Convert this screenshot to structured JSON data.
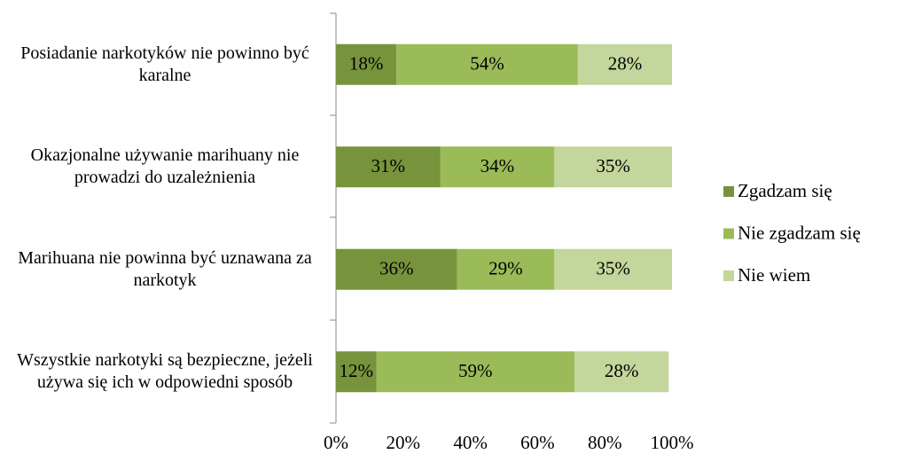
{
  "chart_data": {
    "type": "stacked_barh",
    "categories": [
      "Posiadanie narkotyków nie powinno być karalne",
      "Okazjonalne używanie marihuany nie prowadzi do uzależnienia",
      "Marihuana nie powinna być uznawana za narkotyk",
      "Wszystkie narkotyki są bezpieczne, jeżeli używa się ich w odpowiedni sposób"
    ],
    "series": [
      {
        "name": "Zgadzam się",
        "color": "#77933c",
        "values": [
          18,
          31,
          36,
          12
        ],
        "value_labels": [
          "18%",
          "31%",
          "36%",
          "12%"
        ]
      },
      {
        "name": "Nie zgadzam się",
        "color": "#9bbb59",
        "values": [
          54,
          34,
          29,
          59
        ],
        "value_labels": [
          "54%",
          "34%",
          "29%",
          "59%"
        ]
      },
      {
        "name": "Nie wiem",
        "color": "#c3d69b",
        "values": [
          28,
          35,
          35,
          28
        ],
        "value_labels": [
          "28%",
          "35%",
          "35%",
          "28%"
        ]
      }
    ],
    "xlim": [
      0,
      100
    ],
    "xticks": [
      {
        "value": 0,
        "label": "0%"
      },
      {
        "value": 20,
        "label": "20%"
      },
      {
        "value": 40,
        "label": "40%"
      },
      {
        "value": 60,
        "label": "60%"
      },
      {
        "value": 80,
        "label": "80%"
      },
      {
        "value": 100,
        "label": "100%"
      }
    ],
    "legend": "right"
  }
}
